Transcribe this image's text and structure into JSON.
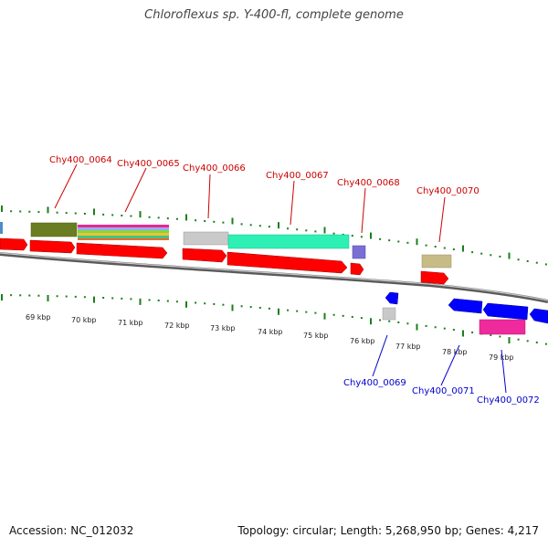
{
  "header": {
    "title": "Chloroflexus sp. Y-400-fl, complete genome"
  },
  "footer": {
    "accession": "Accession: NC_012032",
    "summary": "Topology: circular; Length: 5,268,950 bp; Genes: 4,217"
  },
  "colors": {
    "forward_label": "#cc0000",
    "reverse_label": "#0000cc",
    "cds_forward": "#ff0000",
    "cds_reverse": "#0000ff",
    "tick": "#1a7f1a",
    "backbone": "#888888"
  },
  "scale": {
    "ticks": [
      "69 kbp",
      "70 kbp",
      "71 kbp",
      "72 kbp",
      "73 kbp",
      "74 kbp",
      "75 kbp",
      "76 kbp",
      "77 kbp",
      "78 kbp",
      "79 kbp"
    ]
  },
  "genes": {
    "forward": [
      {
        "id": "Chy400_0064"
      },
      {
        "id": "Chy400_0065"
      },
      {
        "id": "Chy400_0066"
      },
      {
        "id": "Chy400_0067"
      },
      {
        "id": "Chy400_0068"
      },
      {
        "id": "Chy400_0070"
      }
    ],
    "reverse": [
      {
        "id": "Chy400_0069"
      },
      {
        "id": "Chy400_0071"
      },
      {
        "id": "Chy400_0072"
      }
    ]
  }
}
